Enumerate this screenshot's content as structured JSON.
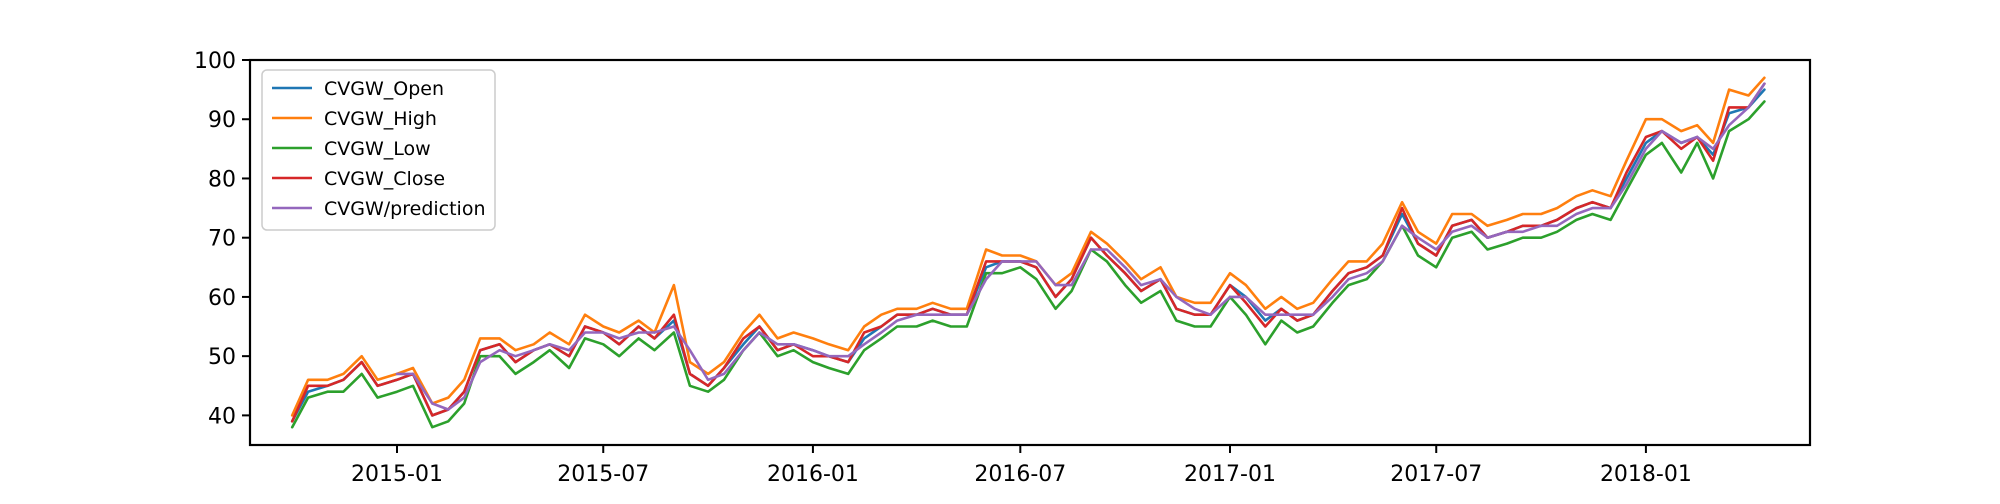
{
  "chart_data": {
    "type": "line",
    "title": "",
    "xlabel": "",
    "ylabel": "",
    "ylim": [
      35,
      100
    ],
    "xlim": [
      "2014-08-25",
      "2018-05-25"
    ],
    "yticks": [
      40,
      50,
      60,
      70,
      80,
      90,
      100
    ],
    "ytick_labels": [
      "40",
      "50",
      "60",
      "70",
      "80",
      "90",
      "100"
    ],
    "xticks": [
      "2015-01-01",
      "2015-07-01",
      "2016-01-01",
      "2016-07-01",
      "2017-01-01",
      "2017-07-01",
      "2018-01-01"
    ],
    "xtick_labels": [
      "2015-01",
      "2015-07",
      "2016-01",
      "2016-07",
      "2017-01",
      "2017-07",
      "2018-01"
    ],
    "grid": false,
    "legend_position": "top-left",
    "x": [
      "2014-10-01",
      "2014-10-15",
      "2014-11-01",
      "2014-11-15",
      "2014-12-01",
      "2014-12-15",
      "2015-01-01",
      "2015-01-15",
      "2015-02-01",
      "2015-02-15",
      "2015-03-01",
      "2015-03-15",
      "2015-04-01",
      "2015-04-15",
      "2015-05-01",
      "2015-05-15",
      "2015-06-01",
      "2015-06-15",
      "2015-07-01",
      "2015-07-15",
      "2015-08-01",
      "2015-08-15",
      "2015-09-01",
      "2015-09-15",
      "2015-10-01",
      "2015-10-15",
      "2015-11-01",
      "2015-11-15",
      "2015-12-01",
      "2015-12-15",
      "2016-01-01",
      "2016-01-15",
      "2016-02-01",
      "2016-02-15",
      "2016-03-01",
      "2016-03-15",
      "2016-04-01",
      "2016-04-15",
      "2016-05-01",
      "2016-05-15",
      "2016-06-01",
      "2016-06-15",
      "2016-07-01",
      "2016-07-15",
      "2016-08-01",
      "2016-08-15",
      "2016-09-01",
      "2016-09-15",
      "2016-10-01",
      "2016-10-15",
      "2016-11-01",
      "2016-11-15",
      "2016-12-01",
      "2016-12-15",
      "2017-01-01",
      "2017-01-15",
      "2017-02-01",
      "2017-02-15",
      "2017-03-01",
      "2017-03-15",
      "2017-04-01",
      "2017-04-15",
      "2017-05-01",
      "2017-05-15",
      "2017-06-01",
      "2017-06-15",
      "2017-07-01",
      "2017-07-15",
      "2017-08-01",
      "2017-08-15",
      "2017-09-01",
      "2017-09-15",
      "2017-10-01",
      "2017-10-15",
      "2017-11-01",
      "2017-11-15",
      "2017-12-01",
      "2017-12-15",
      "2018-01-01",
      "2018-01-15",
      "2018-02-01",
      "2018-02-15",
      "2018-03-01",
      "2018-03-15",
      "2018-04-01",
      "2018-04-15"
    ],
    "series": [
      {
        "name": "CVGW_Open",
        "color": "#1f77b4",
        "values": [
          39,
          44,
          45,
          46,
          49,
          45,
          46,
          47,
          40,
          41,
          44,
          51,
          52,
          49,
          51,
          52,
          50,
          55,
          54,
          52,
          55,
          53,
          56,
          47,
          45,
          48,
          52,
          55,
          51,
          52,
          51,
          50,
          49,
          53,
          55,
          57,
          57,
          58,
          57,
          57,
          65,
          66,
          66,
          65,
          60,
          63,
          70,
          67,
          64,
          61,
          63,
          58,
          57,
          57,
          62,
          60,
          56,
          58,
          56,
          57,
          61,
          64,
          65,
          67,
          74,
          69,
          67,
          72,
          73,
          70,
          71,
          72,
          72,
          73,
          75,
          76,
          75,
          80,
          86,
          88,
          86,
          87,
          84,
          91,
          92,
          95
        ]
      },
      {
        "name": "CVGW_High",
        "color": "#ff7f0e",
        "values": [
          40,
          46,
          46,
          47,
          50,
          46,
          47,
          48,
          42,
          43,
          46,
          53,
          53,
          51,
          52,
          54,
          52,
          57,
          55,
          54,
          56,
          54,
          62,
          49,
          47,
          49,
          54,
          57,
          53,
          54,
          53,
          52,
          51,
          55,
          57,
          58,
          58,
          59,
          58,
          58,
          68,
          67,
          67,
          66,
          62,
          64,
          71,
          69,
          66,
          63,
          65,
          60,
          59,
          59,
          64,
          62,
          58,
          60,
          58,
          59,
          63,
          66,
          66,
          69,
          76,
          71,
          69,
          74,
          74,
          72,
          73,
          74,
          74,
          75,
          77,
          78,
          77,
          83,
          90,
          90,
          88,
          89,
          86,
          95,
          94,
          97
        ]
      },
      {
        "name": "CVGW_Low",
        "color": "#2ca02c",
        "values": [
          38,
          43,
          44,
          44,
          47,
          43,
          44,
          45,
          38,
          39,
          42,
          50,
          50,
          47,
          49,
          51,
          48,
          53,
          52,
          50,
          53,
          51,
          54,
          45,
          44,
          46,
          51,
          54,
          50,
          51,
          49,
          48,
          47,
          51,
          53,
          55,
          55,
          56,
          55,
          55,
          64,
          64,
          65,
          63,
          58,
          61,
          68,
          66,
          62,
          59,
          61,
          56,
          55,
          55,
          60,
          57,
          52,
          56,
          54,
          55,
          59,
          62,
          63,
          66,
          72,
          67,
          65,
          70,
          71,
          68,
          69,
          70,
          70,
          71,
          73,
          74,
          73,
          78,
          84,
          86,
          81,
          86,
          80,
          88,
          90,
          93
        ]
      },
      {
        "name": "CVGW_Close",
        "color": "#d62728",
        "values": [
          39,
          45,
          45,
          46,
          49,
          45,
          46,
          47,
          40,
          41,
          44,
          51,
          52,
          49,
          51,
          52,
          50,
          55,
          54,
          52,
          55,
          53,
          57,
          47,
          45,
          48,
          53,
          55,
          51,
          52,
          50,
          50,
          49,
          54,
          55,
          57,
          57,
          58,
          57,
          57,
          66,
          66,
          66,
          65,
          60,
          63,
          70,
          67,
          64,
          61,
          63,
          58,
          57,
          57,
          62,
          59,
          55,
          58,
          56,
          57,
          61,
          64,
          65,
          67,
          75,
          69,
          67,
          72,
          73,
          70,
          71,
          72,
          72,
          73,
          75,
          76,
          75,
          81,
          87,
          88,
          85,
          87,
          83,
          92,
          92,
          96
        ]
      },
      {
        "name": "CVGW/prediction",
        "color": "#9467bd",
        "values": [
          null,
          null,
          null,
          null,
          null,
          null,
          47,
          47,
          42,
          41,
          43,
          49,
          51,
          50,
          51,
          52,
          51,
          54,
          54,
          53,
          54,
          54,
          55,
          51,
          46,
          47,
          51,
          54,
          52,
          52,
          51,
          50,
          50,
          52,
          54,
          56,
          57,
          57,
          57,
          57,
          63,
          66,
          66,
          66,
          62,
          62,
          68,
          68,
          65,
          62,
          63,
          60,
          58,
          57,
          60,
          60,
          57,
          57,
          57,
          57,
          60,
          63,
          64,
          66,
          72,
          70,
          68,
          71,
          72,
          70,
          71,
          71,
          72,
          72,
          74,
          75,
          75,
          79,
          85,
          88,
          86,
          87,
          85,
          89,
          92,
          96
        ]
      }
    ]
  }
}
